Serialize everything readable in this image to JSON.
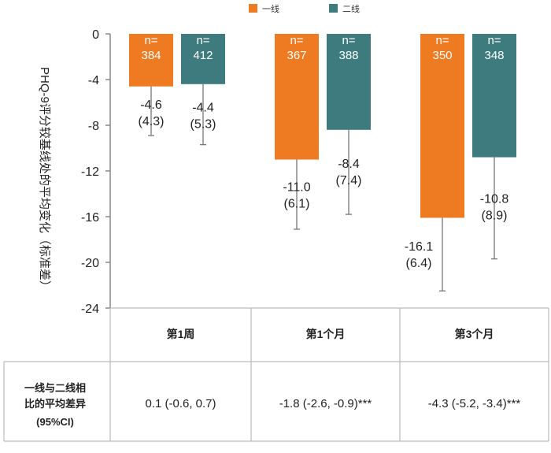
{
  "chart_data": {
    "type": "bar",
    "title": "",
    "xlabel": "",
    "ylabel": "PHQ-9评分较基线处的平均变化（标准差）",
    "ylim": [
      -24,
      0
    ],
    "yticks": [
      "0",
      "-4",
      "-8",
      "-12",
      "-16",
      "-20",
      "-24"
    ],
    "ytick_values": [
      0,
      -4,
      -8,
      -12,
      -16,
      -20,
      -24
    ],
    "categories": [
      "第1周",
      "第1个月",
      "第3个月"
    ],
    "series": [
      {
        "name": "一线",
        "color": "#ee7a22",
        "values": [
          -4.6,
          -11.0,
          -16.1
        ],
        "sd": [
          4.3,
          6.1,
          6.4
        ],
        "n_prefix": "n=",
        "n": [
          "384",
          "367",
          "350"
        ],
        "value_labels": [
          "-4.6",
          "-11.0",
          "-16.1"
        ],
        "sd_labels": [
          "(4.3)",
          "(6.1)",
          "(6.4)"
        ]
      },
      {
        "name": "二线",
        "color": "#3e7b7f",
        "values": [
          -4.4,
          -8.4,
          -10.8
        ],
        "sd": [
          5.3,
          7.4,
          8.9
        ],
        "n_prefix": "n=",
        "n": [
          "412",
          "388",
          "348"
        ],
        "value_labels": [
          "-4.4",
          "-8.4",
          "-10.8"
        ],
        "sd_labels": [
          "(5.3)",
          "(7.4)",
          "(8.9)"
        ]
      }
    ],
    "legend": {
      "position": "top",
      "items": [
        "一线",
        "二线"
      ]
    },
    "difference_table": {
      "row_label_lines": [
        "一线与二线相",
        "比的平均差异",
        "(95%CI)"
      ],
      "values": [
        "0.1 (-0.6, 0.7)",
        "-1.8 (-2.6, -0.9)***",
        "-4.3 (-5.2, -3.4)***"
      ]
    },
    "axis_color": "#888888",
    "errorbar_color": "#777777",
    "grid": false
  }
}
